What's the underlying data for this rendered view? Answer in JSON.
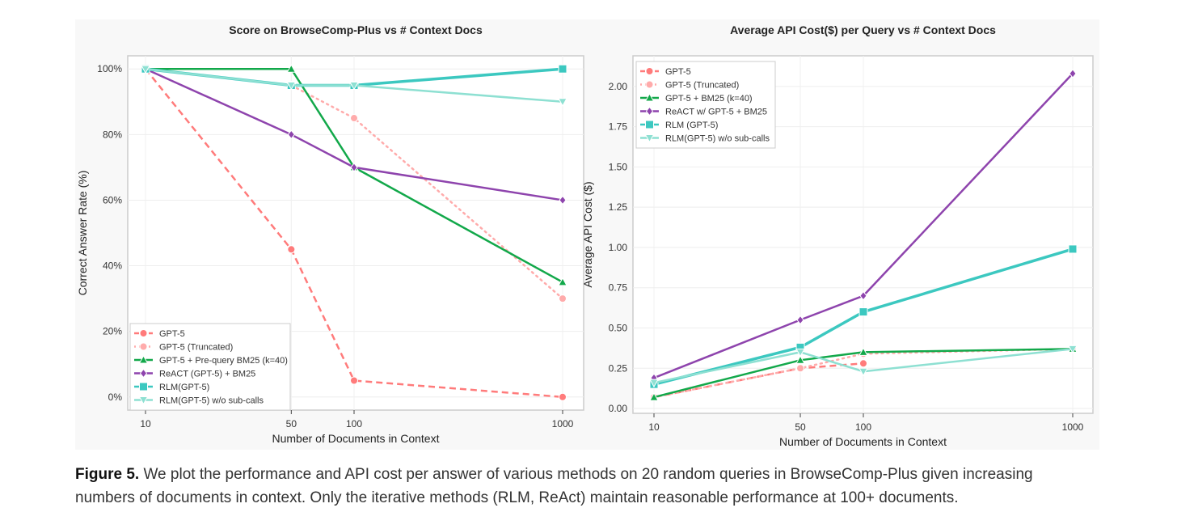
{
  "chart_data": [
    {
      "type": "line",
      "title": "Score on BrowseComp-Plus vs # Context Docs",
      "xlabel": "Number of Documents in Context",
      "ylabel": "Correct Answer Rate (%)",
      "x": [
        10,
        50,
        100,
        1000
      ],
      "xscale": "log",
      "xticks": [
        "10",
        "50",
        "100",
        "1000"
      ],
      "yticks": [
        "0%",
        "20%",
        "40%",
        "60%",
        "80%",
        "100%"
      ],
      "ytick_values": [
        0,
        20,
        40,
        60,
        80,
        100
      ],
      "ylim": [
        -4,
        104
      ],
      "grid": true,
      "legend_position": "bottom-left",
      "series": [
        {
          "name": "GPT-5",
          "values": [
            100,
            45,
            5,
            0
          ],
          "color": "#ff7b7b",
          "marker": "circle",
          "dash": "dashed"
        },
        {
          "name": "GPT-5 (Truncated)",
          "values": [
            100,
            95,
            85,
            30
          ],
          "color": "#ffabab",
          "marker": "circle",
          "dash": "dotted"
        },
        {
          "name": "GPT-5 + Pre-query BM25 (k=40)",
          "values": [
            100,
            100,
            70,
            35
          ],
          "color": "#12a84a",
          "marker": "triangle-up",
          "dash": "solid"
        },
        {
          "name": "ReACT (GPT-5) + BM25",
          "values": [
            100,
            80,
            70,
            60
          ],
          "color": "#8e44ad",
          "marker": "diamond",
          "dash": "solid"
        },
        {
          "name": "RLM(GPT-5)",
          "values": [
            100,
            95,
            95,
            100
          ],
          "color": "#3cc8c0",
          "marker": "square",
          "dash": "solid"
        },
        {
          "name": "RLM(GPT-5) w/o sub-calls",
          "values": [
            100,
            95,
            95,
            90
          ],
          "color": "#8ee0d2",
          "marker": "triangle-down",
          "dash": "solid"
        }
      ]
    },
    {
      "type": "line",
      "title": "Average API Cost($) per Query vs # Context Docs",
      "xlabel": "Number of Documents in Context",
      "ylabel": "Average API Cost ($)",
      "x": [
        10,
        50,
        100,
        1000
      ],
      "xscale": "log",
      "xticks": [
        "10",
        "50",
        "100",
        "1000"
      ],
      "yticks": [
        "0.00",
        "0.25",
        "0.50",
        "0.75",
        "1.00",
        "1.25",
        "1.50",
        "1.75",
        "2.00"
      ],
      "ytick_values": [
        0,
        0.25,
        0.5,
        0.75,
        1.0,
        1.25,
        1.5,
        1.75,
        2.0
      ],
      "ylim": [
        -0.03,
        2.19
      ],
      "grid": true,
      "legend_position": "top-left",
      "series": [
        {
          "name": "GPT-5",
          "values": [
            0.07,
            0.25,
            0.28,
            null
          ],
          "color": "#ff7b7b",
          "marker": "circle",
          "dash": "dashed"
        },
        {
          "name": "GPT-5 (Truncated)",
          "values": [
            0.07,
            0.25,
            0.34,
            0.37
          ],
          "color": "#ffabab",
          "marker": "circle",
          "dash": "dotted"
        },
        {
          "name": "GPT-5 + BM25 (k=40)",
          "values": [
            0.07,
            0.3,
            0.35,
            0.37
          ],
          "color": "#12a84a",
          "marker": "triangle-up",
          "dash": "solid"
        },
        {
          "name": "ReACT w/ GPT-5 + BM25",
          "values": [
            0.19,
            0.55,
            0.7,
            2.08
          ],
          "color": "#8e44ad",
          "marker": "diamond",
          "dash": "solid"
        },
        {
          "name": "RLM (GPT-5)",
          "values": [
            0.15,
            0.38,
            0.6,
            0.99
          ],
          "color": "#3cc8c0",
          "marker": "square",
          "dash": "solid"
        },
        {
          "name": "RLM(GPT-5) w/o sub-calls",
          "values": [
            0.16,
            0.35,
            0.23,
            0.37
          ],
          "color": "#8ee0d2",
          "marker": "triangle-down",
          "dash": "solid"
        }
      ]
    }
  ],
  "caption": {
    "label": "Figure 5.",
    "text": " We plot the performance and API cost per answer of various methods on 20 random queries in BrowseComp-Plus given increasing numbers of documents in context. Only the iterative methods (RLM, ReAct) maintain reasonable performance at 100+ documents."
  }
}
